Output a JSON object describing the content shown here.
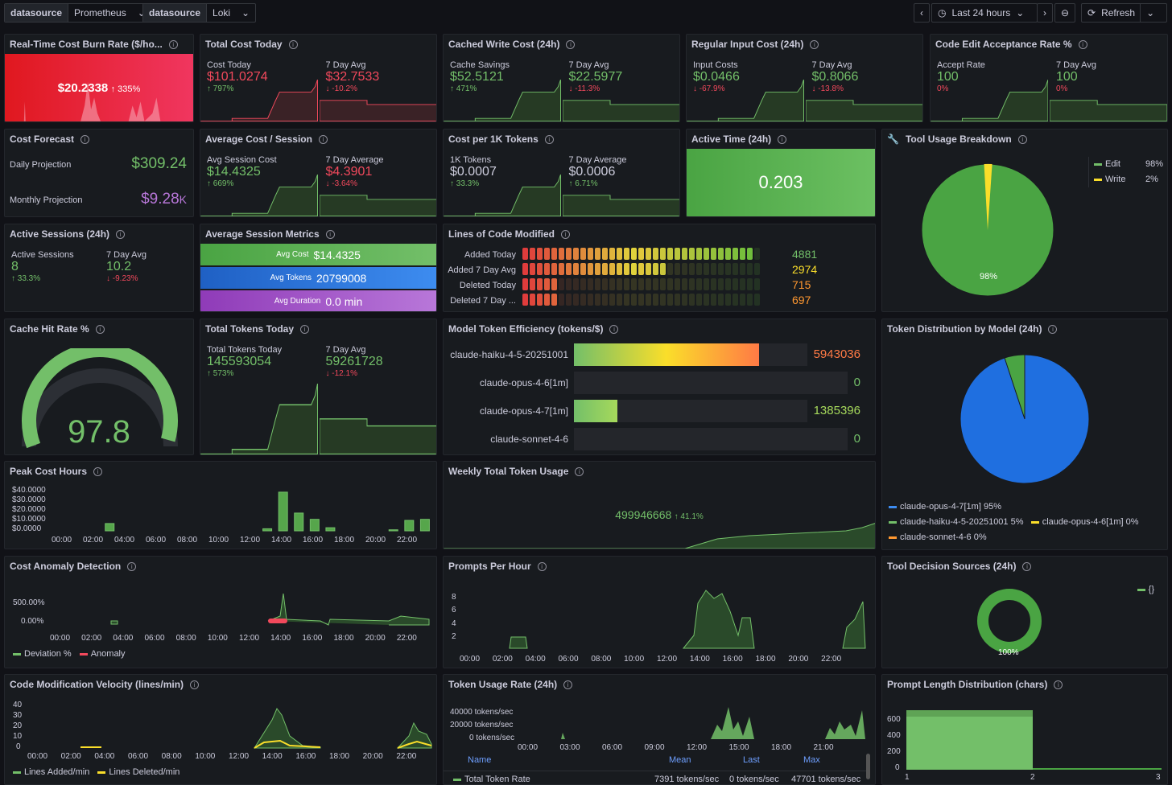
{
  "toolbar": {
    "ds1_label": "datasource",
    "ds1_value": "Prometheus",
    "ds2_label": "datasource",
    "ds2_value": "Loki",
    "time_range": "Last 24 hours",
    "refresh": "Refresh"
  },
  "burn": {
    "title": "Real-Time Cost Burn Rate ($/ho...",
    "value": "$20.2338",
    "delta": "↑ 335%"
  },
  "total_cost": {
    "title": "Total Cost Today",
    "l1": "Cost Today",
    "v1": "$101.0274",
    "d1": "↑ 797%",
    "l2": "7 Day Avg",
    "v2": "$32.7533",
    "d2": "↓ -10.2%"
  },
  "cached": {
    "title": "Cached Write Cost (24h)",
    "l1": "Cache Savings",
    "v1": "$52.5121",
    "d1": "↑ 471%",
    "l2": "7 Day Avg",
    "v2": "$22.5977",
    "d2": "↓ -11.3%"
  },
  "input": {
    "title": "Regular Input Cost (24h)",
    "l1": "Input Costs",
    "v1": "$0.0466",
    "d1": "↓ -67.9%",
    "l2": "7 Day Avg",
    "v2": "$0.8066",
    "d2": "↓ -13.8%"
  },
  "accept": {
    "title": "Code Edit Acceptance Rate %",
    "l1": "Accept Rate",
    "v1": "100",
    "d1": "0%",
    "l2": "7 Day Avg",
    "v2": "100",
    "d2": "0%"
  },
  "forecast": {
    "title": "Cost Forecast",
    "l1": "Daily Projection",
    "v1": "$309.24",
    "l2": "Monthly Projection",
    "v2": "$9.28",
    "v2unit": "K"
  },
  "avg_session": {
    "title": "Average Cost / Session",
    "l1": "Avg Session Cost",
    "v1": "$14.4325",
    "d1": "↑ 669%",
    "l2": "7 Day Average",
    "v2": "$4.3901",
    "d2": "↓ -3.64%"
  },
  "per1k": {
    "title": "Cost per 1K Tokens",
    "l1": "1K Tokens",
    "v1": "$0.0007",
    "d1": "↑ 33.3%",
    "l2": "7 Day Average",
    "v2": "$0.0006",
    "d2": "↑ 6.71%"
  },
  "active_time": {
    "title": "Active Time (24h)",
    "value": "0.203"
  },
  "tool_usage": {
    "title": "Tool Usage Breakdown",
    "legend": [
      {
        "name": "Edit",
        "pct": "98%",
        "value": 98,
        "color": "#73bf69"
      },
      {
        "name": "Write",
        "pct": "2%",
        "value": 2,
        "color": "#fade2a"
      }
    ],
    "slice_label": "98%"
  },
  "active_sessions": {
    "title": "Active Sessions (24h)",
    "l1": "Active Sessions",
    "v1": "8",
    "d1": "↑ 33.3%",
    "l2": "7 Day Avg",
    "v2": "10.2",
    "d2": "↓ -9.23%"
  },
  "session_metrics": {
    "title": "Average Session Metrics",
    "rows": [
      {
        "label": "Avg Cost",
        "value": "$14.4325",
        "color": "#73bf69"
      },
      {
        "label": "Avg Tokens",
        "value": "20799008",
        "color": "#3d8cf0"
      },
      {
        "label": "Avg Duration",
        "value": "0.0 min",
        "color": "#a352cc"
      }
    ]
  },
  "loc": {
    "title": "Lines of Code Modified",
    "max": 5000,
    "rows": [
      {
        "label": "Added Today",
        "value": 4881,
        "display": "4881",
        "color": "#73bf69"
      },
      {
        "label": "Added 7 Day Avg",
        "value": 2974,
        "display": "2974",
        "color": "#fade2a"
      },
      {
        "label": "Deleted Today",
        "value": 715,
        "display": "715",
        "color": "#ff9830"
      },
      {
        "label": "Deleted 7 Day ...",
        "value": 697,
        "display": "697",
        "color": "#ff9830"
      }
    ]
  },
  "cache_hit": {
    "title": "Cache Hit Rate %",
    "value": "97.8",
    "fraction": 0.978
  },
  "total_tokens": {
    "title": "Total Tokens Today",
    "l1": "Total Tokens Today",
    "v1": "145593054",
    "d1": "↑ 573%",
    "l2": "7 Day Avg",
    "v2": "59261728",
    "d2": "↓ -12.1%"
  },
  "efficiency": {
    "title": "Model Token Efficiency (tokens/$)",
    "max": 7500000,
    "rows": [
      {
        "label": "claude-haiku-4-5-20251001",
        "value": 5943036,
        "display": "5943036",
        "color": "#ff7a45"
      },
      {
        "label": "claude-opus-4-6[1m]",
        "value": 0,
        "display": "0",
        "color": "#73bf69"
      },
      {
        "label": "claude-opus-4-7[1m]",
        "value": 1385396,
        "display": "1385396",
        "color": "#a6d95b"
      },
      {
        "label": "claude-sonnet-4-6",
        "value": 0,
        "display": "0",
        "color": "#73bf69"
      }
    ]
  },
  "token_dist": {
    "title": "Token Distribution by Model (24h)",
    "legend": [
      {
        "name": "claude-opus-4-7[1m]",
        "pct": "95%",
        "value": 95,
        "color": "#3d8cf0"
      },
      {
        "name": "claude-haiku-4-5-20251001",
        "pct": "5%",
        "value": 5,
        "color": "#73bf69"
      },
      {
        "name": "claude-opus-4-6[1m]",
        "pct": "0%",
        "value": 0,
        "color": "#fade2a"
      },
      {
        "name": "claude-sonnet-4-6",
        "pct": "0%",
        "value": 0,
        "color": "#ff9830"
      }
    ]
  },
  "peak": {
    "title": "Peak Cost Hours",
    "yticks": [
      "$40.0000",
      "$30.0000",
      "$20.0000",
      "$10.0000",
      "$0.0000"
    ],
    "xticks": [
      "00:00",
      "02:00",
      "04:00",
      "06:00",
      "08:00",
      "10:00",
      "12:00",
      "14:00",
      "16:00",
      "18:00",
      "20:00",
      "22:00"
    ]
  },
  "weekly": {
    "title": "Weekly Total Token Usage",
    "value": "499946668",
    "delta": "↑ 41.1%"
  },
  "anomaly": {
    "title": "Cost Anomaly Detection",
    "yticks": [
      "500.00%",
      "0.00%"
    ],
    "xticks": [
      "00:00",
      "02:00",
      "04:00",
      "06:00",
      "08:00",
      "10:00",
      "12:00",
      "14:00",
      "16:00",
      "18:00",
      "20:00",
      "22:00"
    ],
    "legend": [
      "Deviation %",
      "Anomaly"
    ]
  },
  "prompts": {
    "title": "Prompts Per Hour",
    "yticks": [
      "8",
      "6",
      "4",
      "2"
    ],
    "xticks": [
      "00:00",
      "02:00",
      "04:00",
      "06:00",
      "08:00",
      "10:00",
      "12:00",
      "14:00",
      "16:00",
      "18:00",
      "20:00",
      "22:00"
    ]
  },
  "decision": {
    "title": "Tool Decision Sources (24h)",
    "legend": "{}",
    "slice_label": "100%"
  },
  "velocity": {
    "title": "Code Modification Velocity (lines/min)",
    "yticks": [
      "40",
      "30",
      "20",
      "10",
      "0"
    ],
    "xticks": [
      "00:00",
      "02:00",
      "04:00",
      "06:00",
      "08:00",
      "10:00",
      "12:00",
      "14:00",
      "16:00",
      "18:00",
      "20:00",
      "22:00"
    ],
    "legend": [
      "Lines Added/min",
      "Lines Deleted/min"
    ]
  },
  "token_rate": {
    "title": "Token Usage Rate (24h)",
    "yticks": [
      "40000 tokens/sec",
      "20000 tokens/sec",
      "0 tokens/sec"
    ],
    "xticks": [
      "00:00",
      "03:00",
      "06:00",
      "09:00",
      "12:00",
      "15:00",
      "18:00",
      "21:00"
    ],
    "headers": [
      "Name",
      "Mean",
      "Last",
      "Max"
    ],
    "row": {
      "name": "Total Token Rate",
      "mean": "7391 tokens/sec",
      "last": "0 tokens/sec",
      "max": "47701 tokens/sec"
    }
  },
  "prompt_len": {
    "title": "Prompt Length Distribution (chars)",
    "yticks": [
      "600",
      "400",
      "200",
      "0"
    ],
    "xticks": [
      "1",
      "2",
      "3"
    ]
  },
  "chart_data": {
    "type": "bar",
    "title": "Peak Cost Hours",
    "categories": [
      "03:00",
      "13:00",
      "14:00",
      "15:00",
      "16:00",
      "17:00",
      "21:00",
      "22:00",
      "23:00"
    ],
    "values": [
      7,
      2,
      37,
      17,
      11,
      3,
      1,
      10,
      11
    ],
    "ylabel": "$",
    "ylim": [
      0,
      40
    ]
  }
}
